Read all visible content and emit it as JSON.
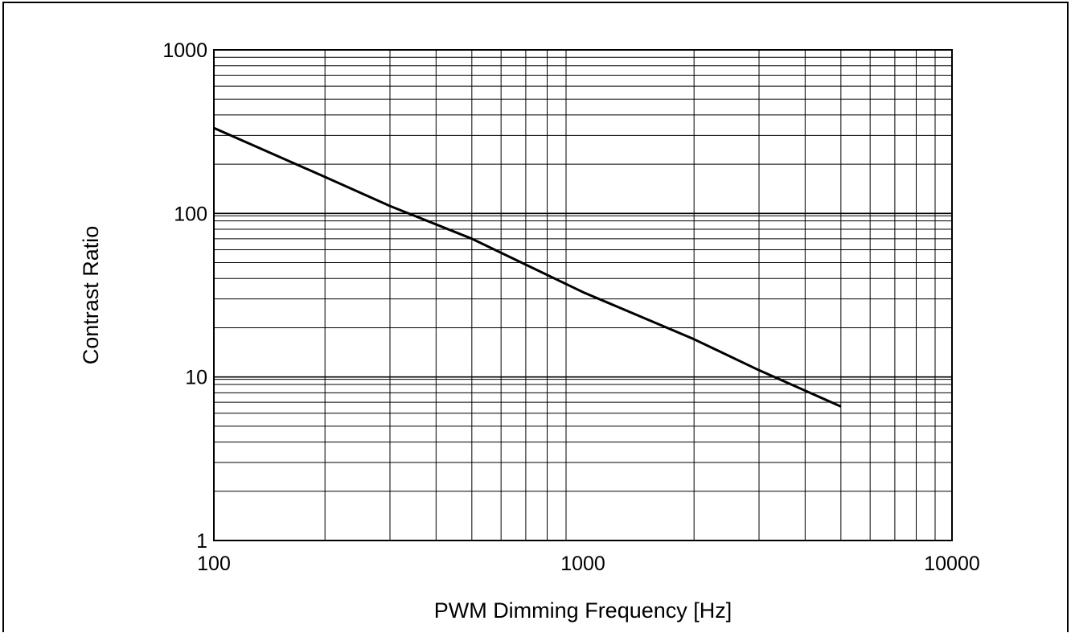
{
  "chart_data": {
    "type": "line",
    "title": "",
    "xlabel": "PWM Dimming Frequency [Hz]",
    "ylabel": "Contrast Ratio",
    "xscale": "log",
    "yscale": "log",
    "xlim": [
      100,
      10000
    ],
    "ylim": [
      1,
      1000
    ],
    "x_ticks": [
      "100",
      "1000",
      "10000"
    ],
    "y_ticks": [
      "1",
      "10",
      "100",
      "1000"
    ],
    "grid": true,
    "legend": "none",
    "line_color": "#000000",
    "series": [
      {
        "x": [
          100,
          200,
          300,
          500,
          1000,
          2000,
          3000,
          5000
        ],
        "values": [
          333,
          167,
          111,
          70,
          33,
          17,
          11,
          6.6
        ]
      }
    ]
  }
}
